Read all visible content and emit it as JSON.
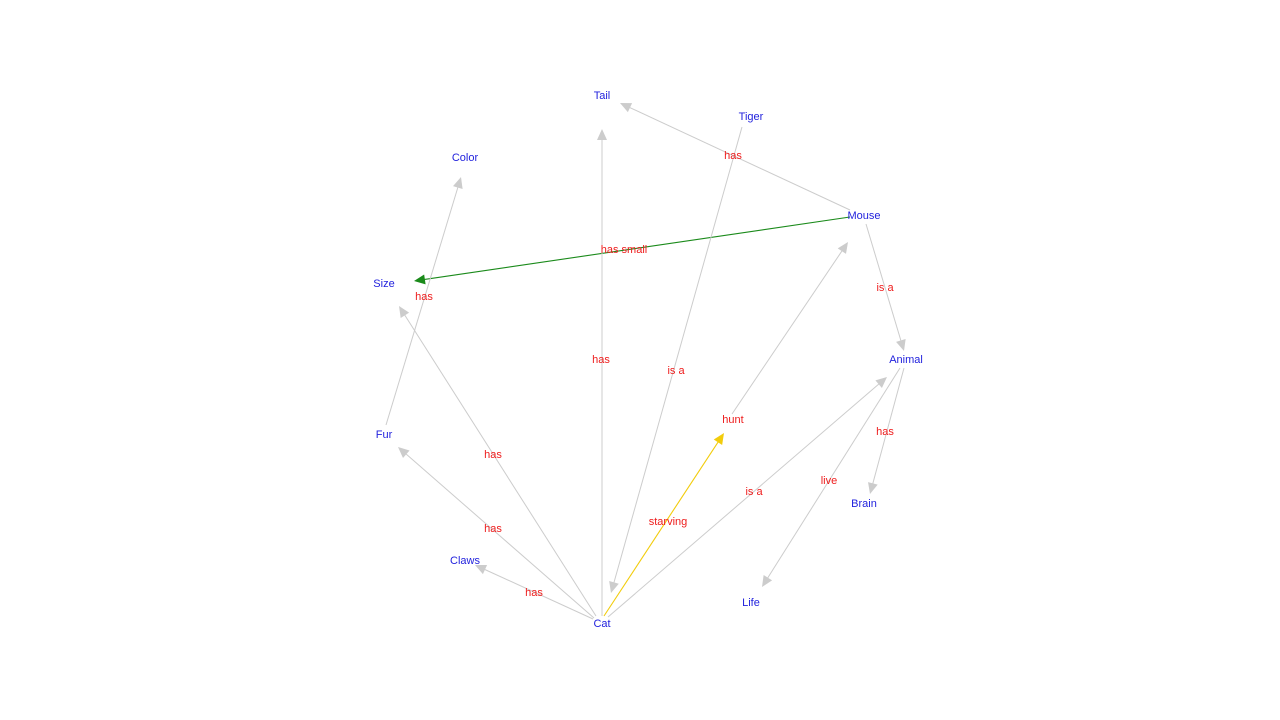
{
  "graph": {
    "nodes": [
      {
        "id": "tail",
        "label": "Tail"
      },
      {
        "id": "tiger",
        "label": "Tiger"
      },
      {
        "id": "color",
        "label": "Color"
      },
      {
        "id": "mouse",
        "label": "Mouse"
      },
      {
        "id": "size",
        "label": "Size"
      },
      {
        "id": "animal",
        "label": "Animal"
      },
      {
        "id": "fur",
        "label": "Fur"
      },
      {
        "id": "brain",
        "label": "Brain"
      },
      {
        "id": "claws",
        "label": "Claws"
      },
      {
        "id": "life",
        "label": "Life"
      },
      {
        "id": "cat",
        "label": "Cat"
      }
    ],
    "edges": [
      {
        "id": "mouse-tail",
        "from": "mouse",
        "to": "tail",
        "label": "has",
        "color": "#cccccc"
      },
      {
        "id": "mouse-size",
        "from": "mouse",
        "to": "size",
        "label": "has small",
        "color": "#1a8a1a"
      },
      {
        "id": "mouse-animal",
        "from": "mouse",
        "to": "animal",
        "label": "is a",
        "color": "#cccccc"
      },
      {
        "id": "tiger-cat",
        "from": "tiger",
        "to": "cat",
        "label": "is a",
        "color": "#cccccc"
      },
      {
        "id": "fur-color",
        "from": "fur",
        "to": "color",
        "label": "has",
        "color": "#cccccc"
      },
      {
        "id": "cat-tail",
        "from": "cat",
        "to": "tail",
        "label": "has",
        "color": "#cccccc"
      },
      {
        "id": "cat-size",
        "from": "cat",
        "to": "size",
        "label": "has",
        "color": "#cccccc"
      },
      {
        "id": "cat-fur",
        "from": "cat",
        "to": "fur",
        "label": "has",
        "color": "#cccccc"
      },
      {
        "id": "cat-claws",
        "from": "cat",
        "to": "claws",
        "label": "has",
        "color": "#cccccc"
      },
      {
        "id": "cat-mouse",
        "from": "cat",
        "to": "mouse",
        "label": "hunt",
        "color": "#cccccc"
      },
      {
        "id": "cat-hunt",
        "from": "cat",
        "to": "hunt-point",
        "label": "starving",
        "color": "#f2cc0c"
      },
      {
        "id": "cat-animal",
        "from": "cat",
        "to": "animal",
        "label": "is a",
        "color": "#cccccc"
      },
      {
        "id": "animal-brain",
        "from": "animal",
        "to": "brain",
        "label": "has",
        "color": "#cccccc"
      },
      {
        "id": "animal-life",
        "from": "animal",
        "to": "life",
        "label": "live",
        "color": "#cccccc"
      }
    ],
    "colors": {
      "node_text": "#2222dd",
      "edge_text": "#ee1c1c",
      "edge_default": "#cccccc",
      "edge_highlight_green": "#1a8a1a",
      "edge_highlight_yellow": "#f2cc0c"
    }
  }
}
